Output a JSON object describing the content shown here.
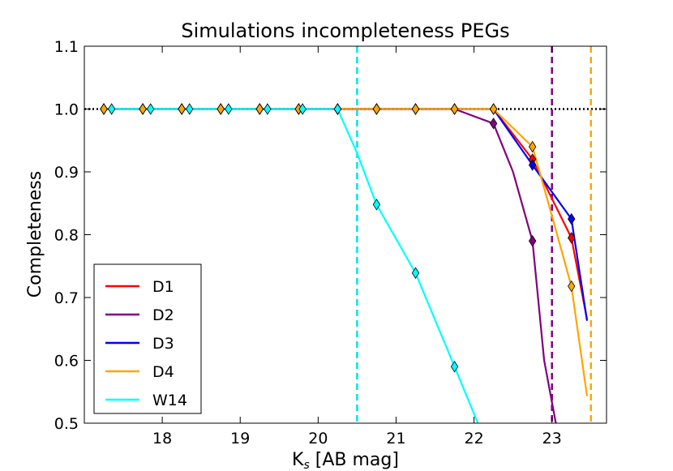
{
  "chart_data": {
    "type": "line",
    "title": "Simulations incompleteness PEGs",
    "xlabel_main": "K",
    "xlabel_sub": "s",
    "xlabel_rest": " [AB mag]",
    "ylabel": "Completeness",
    "xlim": [
      17.0,
      23.7
    ],
    "ylim": [
      0.5,
      1.1
    ],
    "xticks": [
      18,
      19,
      20,
      21,
      22,
      23
    ],
    "xtick_labels": [
      "18",
      "19",
      "20",
      "21",
      "22",
      "23"
    ],
    "yticks": [
      0.5,
      0.6,
      0.7,
      0.8,
      0.9,
      1.0,
      1.1
    ],
    "ytick_labels": [
      "0.5",
      "0.6",
      "0.7",
      "0.8",
      "0.9",
      "1.0",
      "1.1"
    ],
    "reference_line": {
      "y": 1.0,
      "style": "dotted",
      "color": "#000000"
    },
    "vertical_lines": [
      {
        "x": 20.5,
        "color": "#00e5e5"
      },
      {
        "x": 23.0,
        "color": "#800080"
      },
      {
        "x": 23.5,
        "color": "#ffa500"
      }
    ],
    "legend_position": "lower-left",
    "series": [
      {
        "name": "D1",
        "color": "#ff0000",
        "line": [
          [
            17.25,
            1.0
          ],
          [
            17.75,
            1.0
          ],
          [
            18.25,
            1.0
          ],
          [
            18.75,
            1.0
          ],
          [
            19.25,
            1.0
          ],
          [
            19.75,
            1.0
          ],
          [
            20.25,
            1.0
          ],
          [
            20.75,
            1.0
          ],
          [
            21.25,
            1.0
          ],
          [
            21.75,
            1.0
          ],
          [
            22.25,
            1.0
          ],
          [
            22.75,
            0.92
          ],
          [
            23.25,
            0.795
          ],
          [
            23.45,
            0.665
          ]
        ],
        "markers": [
          [
            17.25,
            1.0
          ],
          [
            17.75,
            1.0
          ],
          [
            18.25,
            1.0
          ],
          [
            18.75,
            1.0
          ],
          [
            19.25,
            1.0
          ],
          [
            19.75,
            1.0
          ],
          [
            20.25,
            1.0
          ],
          [
            20.75,
            1.0
          ],
          [
            21.25,
            1.0
          ],
          [
            21.75,
            1.0
          ],
          [
            22.25,
            1.0
          ],
          [
            22.75,
            0.92
          ],
          [
            23.25,
            0.795
          ]
        ]
      },
      {
        "name": "D2",
        "color": "#800080",
        "line": [
          [
            17.25,
            1.0
          ],
          [
            17.75,
            1.0
          ],
          [
            18.25,
            1.0
          ],
          [
            18.75,
            1.0
          ],
          [
            19.25,
            1.0
          ],
          [
            19.75,
            1.0
          ],
          [
            20.25,
            1.0
          ],
          [
            20.75,
            1.0
          ],
          [
            21.25,
            1.0
          ],
          [
            21.75,
            1.0
          ],
          [
            22.25,
            0.977
          ],
          [
            22.5,
            0.9
          ],
          [
            22.75,
            0.79
          ],
          [
            22.9,
            0.6
          ],
          [
            23.05,
            0.5
          ]
        ],
        "markers": [
          [
            17.25,
            1.0
          ],
          [
            17.75,
            1.0
          ],
          [
            18.25,
            1.0
          ],
          [
            18.75,
            1.0
          ],
          [
            19.25,
            1.0
          ],
          [
            19.75,
            1.0
          ],
          [
            20.25,
            1.0
          ],
          [
            20.75,
            1.0
          ],
          [
            21.25,
            1.0
          ],
          [
            21.75,
            1.0
          ],
          [
            22.25,
            0.977
          ],
          [
            22.75,
            0.79
          ]
        ]
      },
      {
        "name": "D3",
        "color": "#0000ff",
        "line": [
          [
            17.25,
            1.0
          ],
          [
            17.75,
            1.0
          ],
          [
            18.25,
            1.0
          ],
          [
            18.75,
            1.0
          ],
          [
            19.25,
            1.0
          ],
          [
            19.75,
            1.0
          ],
          [
            20.25,
            1.0
          ],
          [
            20.75,
            1.0
          ],
          [
            21.25,
            1.0
          ],
          [
            21.75,
            1.0
          ],
          [
            22.25,
            1.0
          ],
          [
            22.75,
            0.911
          ],
          [
            23.25,
            0.825
          ],
          [
            23.45,
            0.663
          ]
        ],
        "markers": [
          [
            17.25,
            1.0
          ],
          [
            17.75,
            1.0
          ],
          [
            18.25,
            1.0
          ],
          [
            18.75,
            1.0
          ],
          [
            19.25,
            1.0
          ],
          [
            19.75,
            1.0
          ],
          [
            20.25,
            1.0
          ],
          [
            20.75,
            1.0
          ],
          [
            21.25,
            1.0
          ],
          [
            21.75,
            1.0
          ],
          [
            22.25,
            1.0
          ],
          [
            22.75,
            0.911
          ],
          [
            23.25,
            0.825
          ]
        ]
      },
      {
        "name": "D4",
        "color": "#ffa500",
        "line": [
          [
            17.25,
            1.0
          ],
          [
            17.75,
            1.0
          ],
          [
            18.25,
            1.0
          ],
          [
            18.75,
            1.0
          ],
          [
            19.25,
            1.0
          ],
          [
            19.75,
            1.0
          ],
          [
            20.25,
            1.0
          ],
          [
            20.75,
            1.0
          ],
          [
            21.25,
            1.0
          ],
          [
            21.75,
            1.0
          ],
          [
            22.25,
            1.0
          ],
          [
            22.75,
            0.94
          ],
          [
            23.0,
            0.83
          ],
          [
            23.25,
            0.718
          ],
          [
            23.45,
            0.543
          ]
        ],
        "markers": [
          [
            17.25,
            1.0
          ],
          [
            17.75,
            1.0
          ],
          [
            18.25,
            1.0
          ],
          [
            18.75,
            1.0
          ],
          [
            19.25,
            1.0
          ],
          [
            19.75,
            1.0
          ],
          [
            20.25,
            1.0
          ],
          [
            20.75,
            1.0
          ],
          [
            21.25,
            1.0
          ],
          [
            21.75,
            1.0
          ],
          [
            22.25,
            1.0
          ],
          [
            22.75,
            0.94
          ],
          [
            23.25,
            0.718
          ]
        ]
      },
      {
        "name": "W14",
        "color": "#00ffff",
        "line": [
          [
            17.2,
            1.0
          ],
          [
            17.35,
            1.0
          ],
          [
            17.85,
            1.0
          ],
          [
            18.35,
            1.0
          ],
          [
            18.85,
            1.0
          ],
          [
            19.35,
            1.0
          ],
          [
            19.8,
            1.0
          ],
          [
            20.25,
            1.0
          ],
          [
            20.5,
            0.93
          ],
          [
            20.75,
            0.848
          ],
          [
            21.25,
            0.739
          ],
          [
            21.75,
            0.59
          ],
          [
            22.05,
            0.5
          ]
        ],
        "markers": [
          [
            17.35,
            1.0
          ],
          [
            17.85,
            1.0
          ],
          [
            18.35,
            1.0
          ],
          [
            18.85,
            1.0
          ],
          [
            19.35,
            1.0
          ],
          [
            19.8,
            1.0
          ],
          [
            20.25,
            1.0
          ],
          [
            20.75,
            0.848
          ],
          [
            21.25,
            0.739
          ],
          [
            21.75,
            0.59
          ]
        ]
      }
    ]
  }
}
